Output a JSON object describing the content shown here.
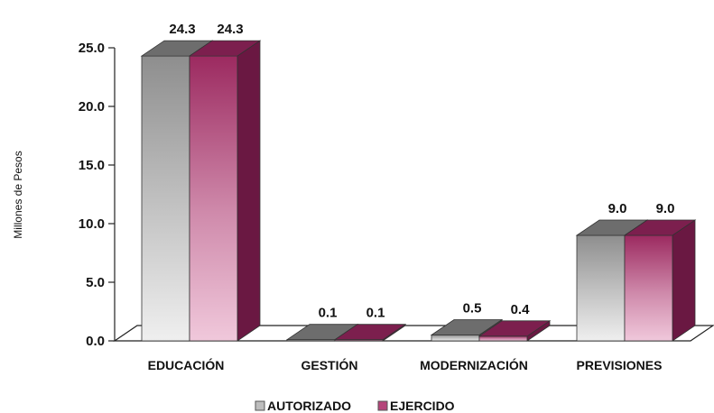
{
  "chart_data": {
    "type": "bar",
    "categories": [
      "EDUCACIÓN",
      "GESTIÓN",
      "MODERNIZACIÓN",
      "PREVISIONES"
    ],
    "series": [
      {
        "name": "AUTORIZADO",
        "values": [
          24.3,
          0.1,
          0.5,
          9.0
        ],
        "color": "#8c8c8c"
      },
      {
        "name": "EJERCIDO",
        "values": [
          24.3,
          0.1,
          0.4,
          9.0
        ],
        "color": "#a3376a"
      }
    ],
    "data_labels": [
      [
        "24.3",
        "0.1",
        "0.5",
        "9.0"
      ],
      [
        "24.3",
        "0.1",
        "0.4",
        "9.0"
      ]
    ],
    "yticks": [
      "0.0",
      "5.0",
      "10.0",
      "15.0",
      "20.0",
      "25.0"
    ],
    "ylabel": "Millones de Pesos",
    "xlabel": "",
    "ylim": [
      0,
      25
    ],
    "grid": false,
    "legend_position": "bottom",
    "style": "3d-clustered-column"
  }
}
